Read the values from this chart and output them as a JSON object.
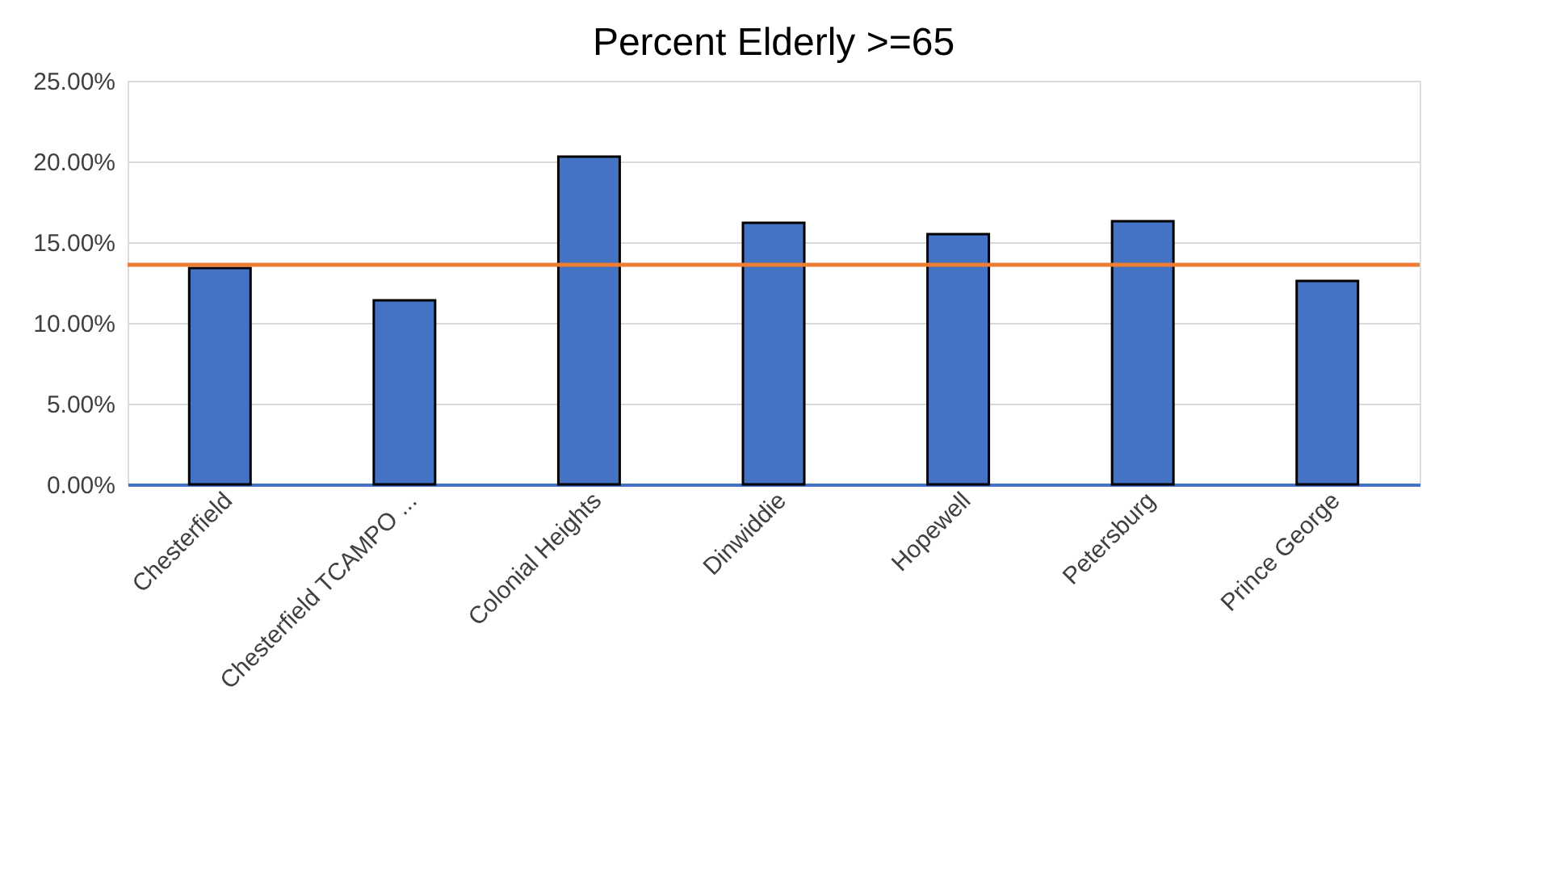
{
  "chart_data": {
    "type": "bar",
    "title": "Percent Elderly >=65",
    "categories": [
      "Chesterfield",
      "Chesterfield TCAMPO ...",
      "Colonial Heights",
      "Dinwiddie",
      "Hopewell",
      "Petersburg",
      "Prince George"
    ],
    "series": [
      {
        "color": "#4472c4",
        "values": [
          13.4,
          11.4,
          20.3,
          16.2,
          15.5,
          16.3,
          12.6
        ]
      }
    ],
    "ylim": [
      0,
      25
    ],
    "yticks": [
      {
        "value": 0,
        "label": "0.00%"
      },
      {
        "value": 5,
        "label": "5.00%"
      },
      {
        "value": 10,
        "label": "10.00%"
      },
      {
        "value": 15,
        "label": "15.00%"
      },
      {
        "value": 20,
        "label": "20.00%"
      },
      {
        "value": 25,
        "label": "25.00%"
      }
    ],
    "ref_lines": [
      {
        "axis": "y",
        "value": 13.6,
        "color": "#ed7d31"
      }
    ],
    "grid": "y"
  }
}
